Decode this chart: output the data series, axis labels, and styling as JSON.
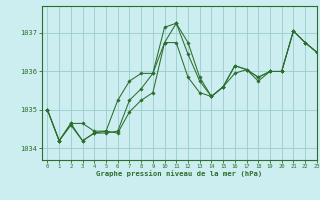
{
  "title": "Graphe pression niveau de la mer (hPa)",
  "background_color": "#cceef0",
  "grid_color": "#99cccc",
  "line_color": "#2d6e2d",
  "marker_color": "#2d6e2d",
  "xlim": [
    -0.5,
    23
  ],
  "ylim": [
    1033.7,
    1037.7
  ],
  "yticks": [
    1034,
    1035,
    1036,
    1037
  ],
  "xticks": [
    0,
    1,
    2,
    3,
    4,
    5,
    6,
    7,
    8,
    9,
    10,
    11,
    12,
    13,
    14,
    15,
    16,
    17,
    18,
    19,
    20,
    21,
    22,
    23
  ],
  "series": [
    [
      1035.0,
      1034.2,
      1034.65,
      1034.2,
      1034.4,
      1034.4,
      1034.45,
      1035.25,
      1035.55,
      1035.95,
      1037.15,
      1037.25,
      1036.75,
      1035.85,
      1035.35,
      1035.6,
      1036.15,
      1036.05,
      1035.85,
      1036.0,
      1036.0,
      1037.05,
      1036.75,
      1036.5
    ],
    [
      1035.0,
      1034.2,
      1034.65,
      1034.65,
      1034.45,
      1034.45,
      1035.25,
      1035.75,
      1035.95,
      1035.95,
      1036.75,
      1036.75,
      1035.85,
      1035.45,
      1035.35,
      1035.6,
      1035.95,
      1036.05,
      1035.85,
      1036.0,
      1036.0,
      1037.05,
      1036.75,
      1036.5
    ],
    [
      1035.0,
      1034.2,
      1034.6,
      1034.2,
      1034.4,
      1034.45,
      1034.4,
      1034.95,
      1035.25,
      1035.45,
      1036.75,
      1037.25,
      1036.45,
      1035.75,
      1035.35,
      1035.6,
      1036.15,
      1036.05,
      1035.75,
      1036.0,
      1036.0,
      1037.05,
      1036.75,
      1036.5
    ]
  ]
}
